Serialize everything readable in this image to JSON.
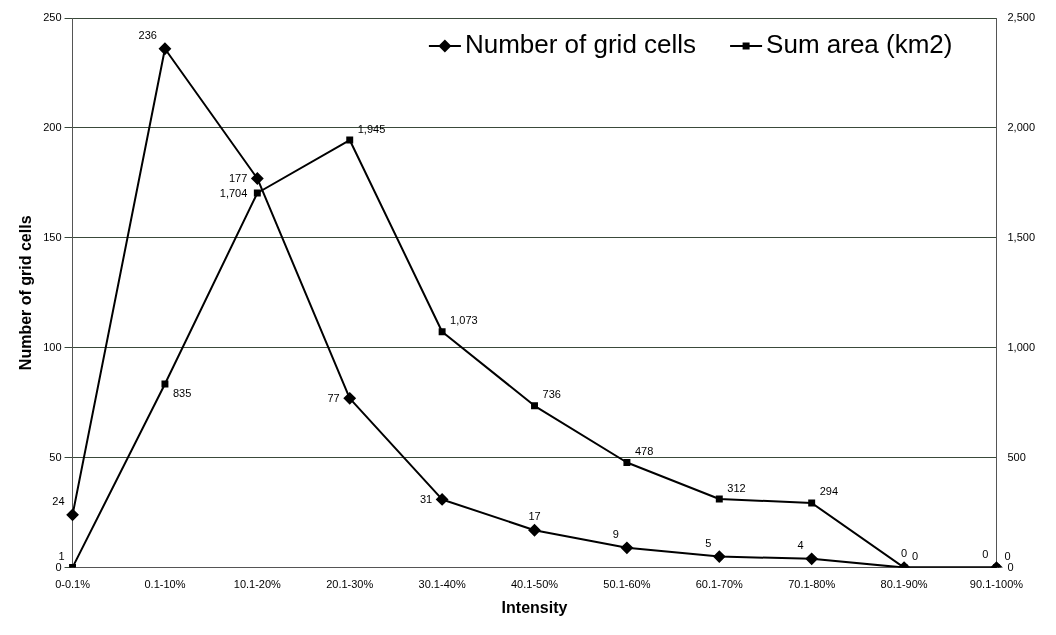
{
  "chart_data": {
    "type": "line",
    "xlabel": "Intensity",
    "ylabel": "Number of grid cells",
    "categories": [
      "0-0.1%",
      "0.1-10%",
      "10.1-20%",
      "20.1-30%",
      "30.1-40%",
      "40.1-50%",
      "50.1-60%",
      "60.1-70%",
      "70.1-80%",
      "80.1-90%",
      "90.1-100%"
    ],
    "series": [
      {
        "name": "Number of grid cells",
        "color": "#000000",
        "marker": "diamond",
        "values": [
          24,
          236,
          177,
          77,
          31,
          17,
          9,
          5,
          4,
          0,
          0
        ],
        "value_labels": [
          "24",
          "236",
          "177",
          "77",
          "31",
          "17",
          "9",
          "5",
          "4",
          "0",
          "0"
        ]
      },
      {
        "name": "Sum area (km2)",
        "color": "#000000",
        "marker": "square",
        "axis": "y2",
        "values": [
          1,
          835,
          1704,
          1945,
          1073,
          736,
          478,
          312,
          294,
          0,
          0
        ],
        "value_labels": [
          "1",
          "835",
          "1,704",
          "1,945",
          "1,073",
          "736",
          "478",
          "312",
          "294",
          "0",
          "0"
        ]
      }
    ],
    "ylim": [
      0,
      250
    ],
    "yticks": [
      0,
      50,
      100,
      150,
      200,
      250
    ],
    "y2lim": [
      0,
      2500
    ],
    "y2ticks": [
      0,
      {
        "value": 500,
        "label": "500"
      },
      {
        "value": 1000,
        "label": "1,000"
      },
      {
        "value": 1500,
        "label": "1,500"
      },
      {
        "value": 2000,
        "label": "2,000"
      },
      {
        "value": 2500,
        "label": "2,500"
      }
    ],
    "grid": "y",
    "legend": "top right",
    "line_style": "solid"
  }
}
